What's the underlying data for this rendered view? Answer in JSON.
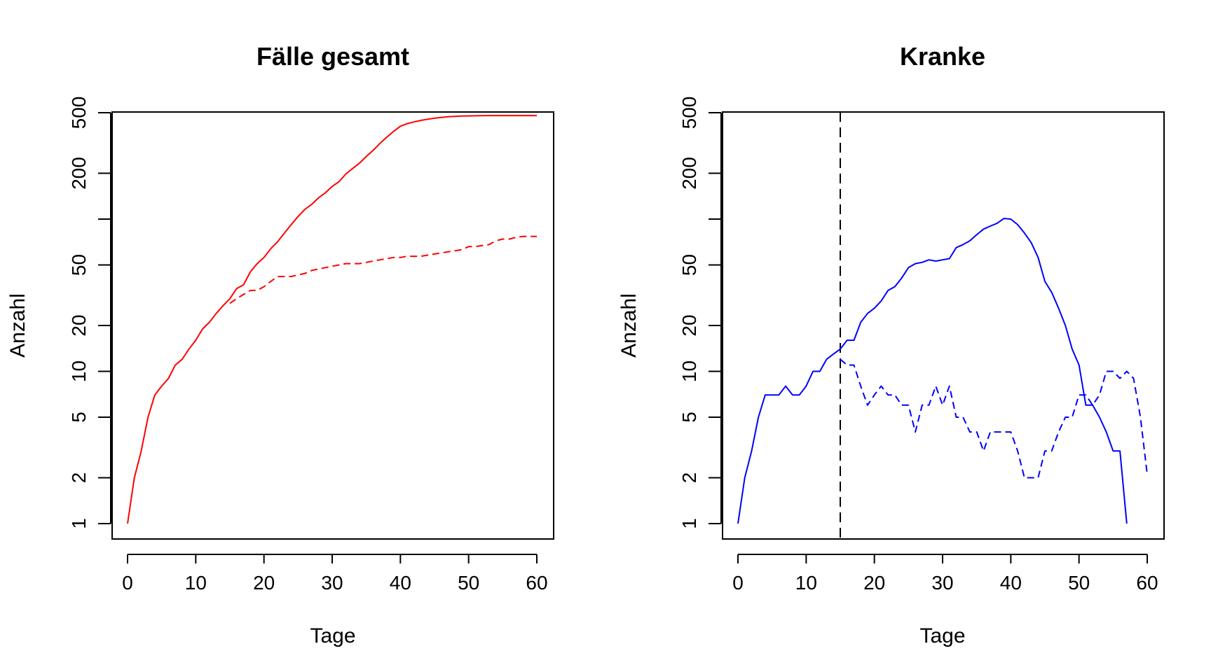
{
  "chart_data": [
    {
      "type": "line",
      "title": "Fälle gesamt",
      "xlabel": "Tage",
      "ylabel": "Anzahl",
      "xlim": [
        0,
        60
      ],
      "ylim": [
        1,
        500
      ],
      "y_scale": "log",
      "x_ticks": [
        0,
        10,
        20,
        30,
        40,
        50,
        60
      ],
      "y_ticks": [
        1,
        2,
        5,
        10,
        20,
        50,
        200,
        500
      ],
      "y_minor_ticks": [
        100
      ],
      "grid": false,
      "legend": "none",
      "vline": null,
      "series": [
        {
          "style": "solid",
          "color": "#ff0000",
          "x": [
            0,
            1,
            2,
            3,
            4,
            5,
            6,
            7,
            8,
            9,
            10,
            11,
            12,
            13,
            14,
            15,
            16,
            17,
            18,
            19,
            20,
            21,
            22,
            23,
            24,
            25,
            26,
            27,
            28,
            29,
            30,
            31,
            32,
            33,
            34,
            35,
            36,
            37,
            38,
            39,
            40,
            41,
            42,
            43,
            44,
            45,
            46,
            47,
            48,
            49,
            50,
            51,
            52,
            53,
            54,
            55,
            56,
            57,
            58,
            59,
            60
          ],
          "y": [
            1,
            2,
            3,
            5,
            7,
            8,
            9,
            11,
            12,
            14,
            16,
            19,
            21,
            24,
            27,
            30,
            35,
            37,
            45,
            51,
            56,
            64,
            71,
            81,
            92,
            104,
            116,
            125,
            138,
            149,
            164,
            176,
            198,
            215,
            233,
            258,
            283,
            314,
            345,
            377,
            407,
            424,
            435,
            445,
            453,
            460,
            466,
            470,
            473,
            475,
            476,
            477,
            478,
            479,
            479,
            479,
            479,
            479,
            479,
            479,
            479
          ]
        },
        {
          "style": "dashed",
          "color": "#ff0000",
          "x": [
            15,
            16,
            17,
            18,
            19,
            20,
            21,
            22,
            23,
            24,
            25,
            26,
            27,
            28,
            29,
            30,
            31,
            32,
            33,
            34,
            35,
            36,
            37,
            38,
            39,
            40,
            41,
            42,
            43,
            44,
            45,
            46,
            47,
            48,
            49,
            50,
            51,
            52,
            53,
            54,
            55,
            56,
            57,
            58,
            59,
            60
          ],
          "y": [
            28,
            30,
            32,
            34,
            34,
            36,
            39,
            42,
            42,
            42,
            43,
            44,
            46,
            47,
            48,
            49,
            50,
            51,
            51,
            51,
            52,
            53,
            54,
            55,
            56,
            56,
            57,
            57,
            57,
            58,
            59,
            60,
            61,
            62,
            63,
            66,
            66,
            67,
            68,
            72,
            74,
            74,
            76,
            77,
            77,
            77
          ]
        }
      ]
    },
    {
      "type": "line",
      "title": "Kranke",
      "xlabel": "Tage",
      "ylabel": "Anzahl",
      "xlim": [
        0,
        60
      ],
      "ylim": [
        1,
        500
      ],
      "y_scale": "log",
      "x_ticks": [
        0,
        10,
        20,
        30,
        40,
        50,
        60
      ],
      "y_ticks": [
        1,
        2,
        5,
        10,
        20,
        50,
        200,
        500
      ],
      "y_minor_ticks": [
        100
      ],
      "grid": false,
      "legend": "none",
      "vline": {
        "x": 15,
        "style": "dashed",
        "color": "#000000"
      },
      "series": [
        {
          "style": "solid",
          "color": "#0000ff",
          "x": [
            0,
            1,
            2,
            3,
            4,
            5,
            6,
            7,
            8,
            9,
            10,
            11,
            12,
            13,
            14,
            15,
            16,
            17,
            18,
            19,
            20,
            21,
            22,
            23,
            24,
            25,
            26,
            27,
            28,
            29,
            30,
            31,
            32,
            33,
            34,
            35,
            36,
            37,
            38,
            39,
            40,
            41,
            42,
            43,
            44,
            45,
            46,
            47,
            48,
            49,
            50,
            51,
            52,
            53,
            54,
            55,
            56,
            57
          ],
          "y": [
            1,
            2,
            3,
            5,
            7,
            7,
            7,
            8,
            7,
            7,
            8,
            10,
            10,
            12,
            13,
            14,
            16,
            16,
            21,
            24,
            26,
            29,
            34,
            36,
            41,
            48,
            51,
            52,
            54,
            53,
            54,
            55,
            65,
            68,
            72,
            79,
            86,
            90,
            94,
            101,
            100,
            92,
            81,
            70,
            56,
            39,
            33,
            26,
            20,
            14,
            11,
            6,
            6,
            5,
            4,
            3,
            3,
            1
          ]
        },
        {
          "style": "dashed",
          "color": "#0000ff",
          "x": [
            15,
            16,
            17,
            18,
            19,
            20,
            21,
            22,
            23,
            24,
            25,
            26,
            27,
            28,
            29,
            30,
            31,
            32,
            33,
            34,
            35,
            36,
            37,
            38,
            39,
            40,
            41,
            42,
            43,
            44,
            45,
            46,
            47,
            48,
            49,
            50,
            51,
            52,
            53,
            54,
            55,
            56,
            57,
            58,
            59,
            60
          ],
          "y": [
            12,
            11,
            11,
            8,
            6,
            7,
            8,
            7,
            7,
            6,
            6,
            4,
            6,
            6,
            8,
            6,
            8,
            5,
            5,
            4,
            4,
            3,
            4,
            4,
            4,
            4,
            3,
            2,
            2,
            2,
            3,
            3,
            4,
            5,
            5,
            7,
            7,
            6,
            7,
            10,
            10,
            9,
            10,
            9,
            5,
            2.1
          ]
        }
      ]
    }
  ]
}
